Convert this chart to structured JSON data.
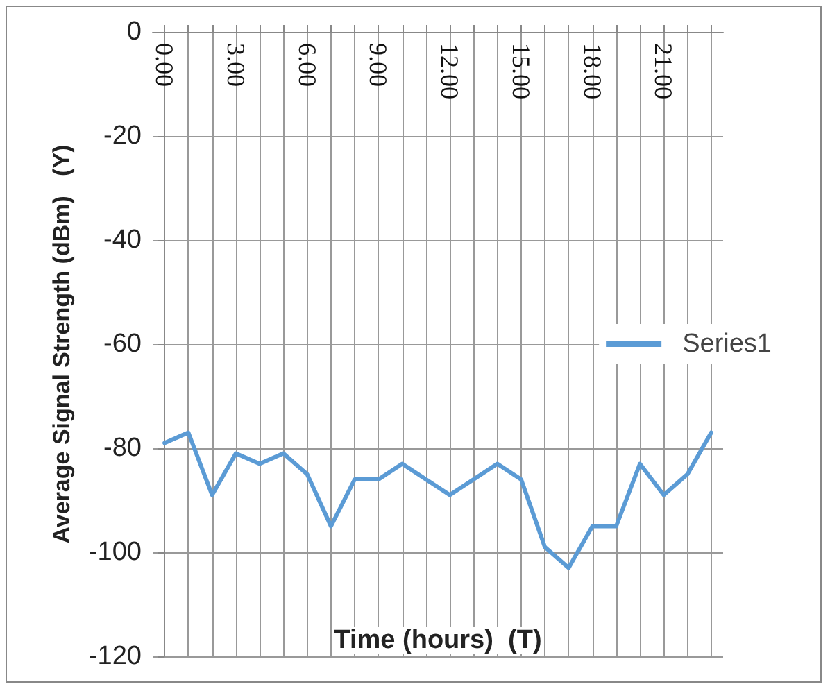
{
  "chart_data": {
    "type": "line",
    "xlabel": "Time (hours)  (T)",
    "ylabel": "Average Signal Strength (dBm)   (Y)",
    "x": [
      0,
      1,
      2,
      3,
      4,
      5,
      6,
      7,
      8,
      9,
      10,
      11,
      12,
      13,
      14,
      15,
      16,
      17,
      18,
      19,
      20,
      21,
      22,
      23
    ],
    "series": [
      {
        "name": "Series1",
        "color": "#5b9bd5",
        "values": [
          -79,
          -77,
          -89,
          -81,
          -83,
          -81,
          -85,
          -95,
          -86,
          -86,
          -83,
          -86,
          -89,
          -86,
          -83,
          -86,
          -99,
          -103,
          -95,
          -95,
          -83,
          -89,
          -85,
          -77
        ]
      }
    ],
    "xlim": [
      -0.5,
      23.5
    ],
    "xticks": [
      {
        "value": 0,
        "label": "0.00"
      },
      {
        "value": 1,
        "label": null
      },
      {
        "value": 2,
        "label": null
      },
      {
        "value": 3,
        "label": "3.00"
      },
      {
        "value": 4,
        "label": null
      },
      {
        "value": 5,
        "label": null
      },
      {
        "value": 6,
        "label": "6.00"
      },
      {
        "value": 7,
        "label": null
      },
      {
        "value": 8,
        "label": null
      },
      {
        "value": 9,
        "label": "9.00"
      },
      {
        "value": 10,
        "label": null
      },
      {
        "value": 11,
        "label": null
      },
      {
        "value": 12,
        "label": "12.00"
      },
      {
        "value": 13,
        "label": null
      },
      {
        "value": 14,
        "label": null
      },
      {
        "value": 15,
        "label": "15.00"
      },
      {
        "value": 16,
        "label": null
      },
      {
        "value": 17,
        "label": null
      },
      {
        "value": 18,
        "label": "18.00"
      },
      {
        "value": 19,
        "label": null
      },
      {
        "value": 20,
        "label": null
      },
      {
        "value": 21,
        "label": "21.00"
      },
      {
        "value": 22,
        "label": null
      },
      {
        "value": 23,
        "label": null
      }
    ],
    "ylim": [
      -120,
      0
    ],
    "yticks": [
      -120,
      -100,
      -80,
      -60,
      -40,
      -20,
      0
    ],
    "grid": true,
    "legend": "right",
    "marker": "none",
    "line_style": "solid"
  }
}
